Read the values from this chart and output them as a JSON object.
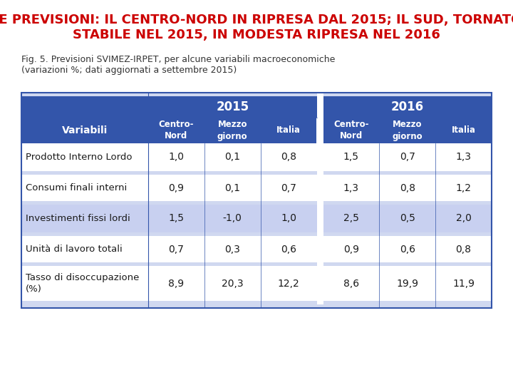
{
  "title_line1": "LE PREVISIONI: IL CENTRO-NORD IN RIPRESA DAL 2015; IL SUD, TORNATO",
  "title_line2": "STABILE NEL 2015, IN MODESTA RIPRESA NEL 2016",
  "title_color": "#cc0000",
  "subtitle": "Fig. 5. Previsioni SVIMEZ-IRPET, per alcune variabili macroeconomiche\n(variazioni %; dati aggiornati a settembre 2015)",
  "subtitle_color": "#333333",
  "header_bg": "#3355aa",
  "header_text_color": "#ffffff",
  "year_headers": [
    "2015",
    "2016"
  ],
  "sub_headers": [
    "Centro-\nNord",
    "Mezzo\ngiorno",
    "Italia",
    "Centro-\nNord",
    "Mezzo\ngiorno",
    "Italia"
  ],
  "row_labels": [
    "Prodotto Interno Lordo",
    "Consumi finali interni",
    "Investimenti fissi lordi",
    "Unità di lavoro totali",
    "Tasso di disoccupazione\n(%)"
  ],
  "row_data": [
    [
      "1,0",
      "0,1",
      "0,8",
      "1,5",
      "0,7",
      "1,3"
    ],
    [
      "0,9",
      "0,1",
      "0,7",
      "1,3",
      "0,8",
      "1,2"
    ],
    [
      "1,5",
      "-1,0",
      "1,0",
      "2,5",
      "0,5",
      "2,0"
    ],
    [
      "0,7",
      "0,3",
      "0,6",
      "0,9",
      "0,6",
      "0,8"
    ],
    [
      "8,9",
      "20,3",
      "12,2",
      "8,6",
      "19,9",
      "11,9"
    ]
  ],
  "row_colors": [
    "#ffffff",
    "#ffffff",
    "#c8d0f0",
    "#ffffff",
    "#ffffff"
  ],
  "strip_color": "#d0d8f0",
  "bg_color": "#ffffff",
  "table_border_color": "#3355aa",
  "font_size_title": 13,
  "font_size_subtitle": 9
}
